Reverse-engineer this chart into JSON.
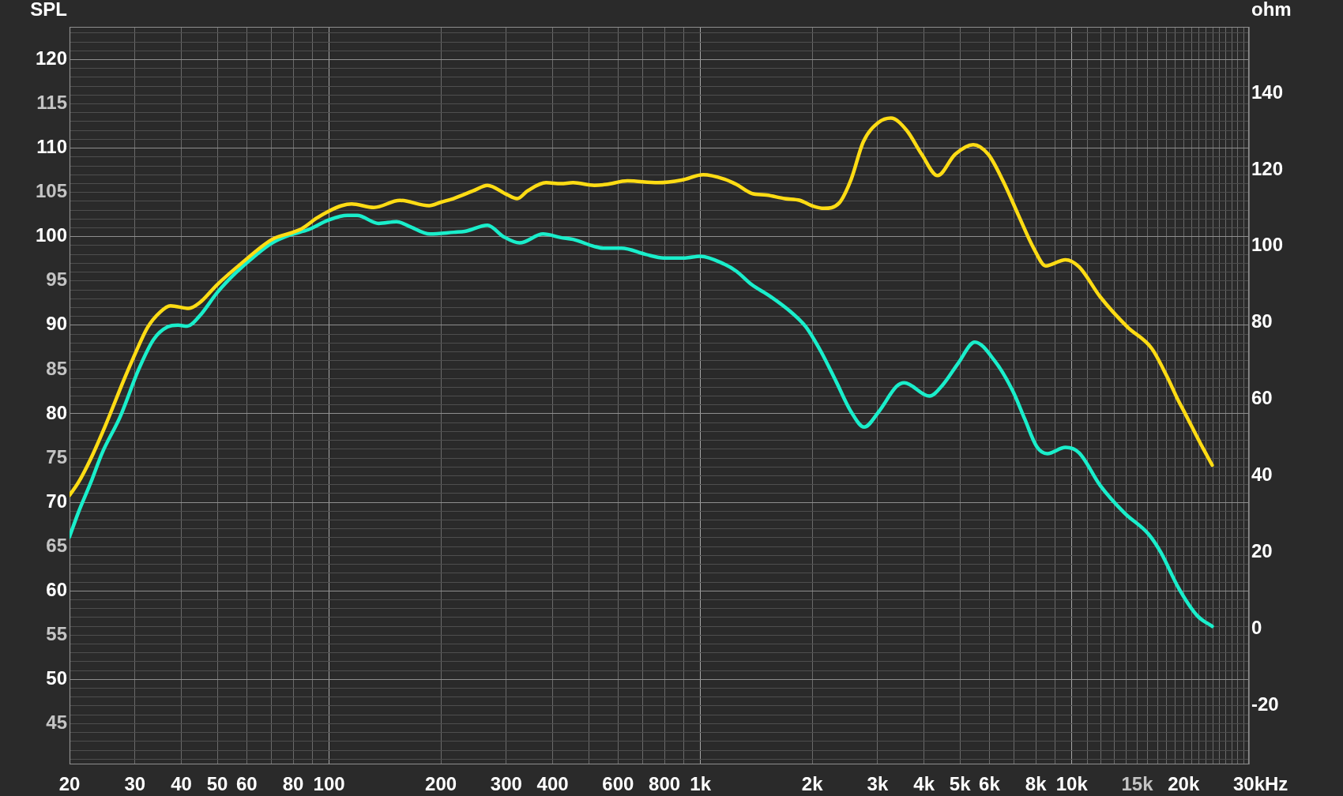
{
  "chart_data": {
    "type": "line",
    "ylabel": "SPL",
    "y2label": "ohm",
    "xlabel": "Hz",
    "log": "x",
    "grid": true,
    "line_style": "solid",
    "xlim": [
      20,
      30000
    ],
    "xticks": [
      20,
      30,
      40,
      50,
      60,
      {
        "value": 70,
        "label": null
      },
      80,
      {
        "value": 90,
        "label": null
      },
      100,
      200,
      300,
      400,
      {
        "value": 500,
        "label": null
      },
      600,
      {
        "value": 700,
        "label": null
      },
      800,
      {
        "value": 900,
        "label": null
      },
      {
        "value": 1000,
        "label": "1k"
      },
      {
        "value": 2000,
        "label": "2k"
      },
      {
        "value": 3000,
        "label": "3k"
      },
      {
        "value": 4000,
        "label": "4k"
      },
      {
        "value": 5000,
        "label": "5k"
      },
      {
        "value": 6000,
        "label": "6k"
      },
      {
        "value": 7000,
        "label": null
      },
      {
        "value": 8000,
        "label": "8k"
      },
      {
        "value": 9000,
        "label": null
      },
      {
        "value": 10000,
        "label": "10k"
      },
      {
        "value": 11000,
        "label": null
      },
      {
        "value": 12000,
        "label": null
      },
      {
        "value": 13000,
        "label": null
      },
      {
        "value": 14000,
        "label": null
      },
      {
        "value": 15000,
        "label": "15k"
      },
      {
        "value": 16000,
        "label": null
      },
      {
        "value": 17000,
        "label": null
      },
      {
        "value": 18000,
        "label": null
      },
      {
        "value": 19000,
        "label": null
      },
      {
        "value": 20000,
        "label": "20k"
      },
      {
        "value": 21000,
        "label": null
      },
      {
        "value": 22000,
        "label": null
      },
      {
        "value": 23000,
        "label": null
      },
      {
        "value": 24000,
        "label": null
      },
      {
        "value": 25000,
        "label": null
      },
      {
        "value": 26000,
        "label": null
      },
      {
        "value": 27000,
        "label": null
      },
      {
        "value": 28000,
        "label": null
      },
      {
        "value": 29000,
        "label": null
      },
      {
        "value": 30000,
        "label": "30k"
      }
    ],
    "ylim": [
      40.4,
      123.7
    ],
    "yticks": [
      {
        "value": 41,
        "label": null
      },
      {
        "value": 42,
        "label": null
      },
      {
        "value": 43,
        "label": null
      },
      {
        "value": 44,
        "label": null
      },
      45,
      {
        "value": 46,
        "label": null
      },
      {
        "value": 47,
        "label": null
      },
      {
        "value": 48,
        "label": null
      },
      {
        "value": 49,
        "label": null
      },
      50,
      {
        "value": 51,
        "label": null
      },
      {
        "value": 52,
        "label": null
      },
      {
        "value": 53,
        "label": null
      },
      {
        "value": 54,
        "label": null
      },
      55,
      {
        "value": 56,
        "label": null
      },
      {
        "value": 57,
        "label": null
      },
      {
        "value": 58,
        "label": null
      },
      {
        "value": 59,
        "label": null
      },
      60,
      {
        "value": 61,
        "label": null
      },
      {
        "value": 62,
        "label": null
      },
      {
        "value": 63,
        "label": null
      },
      {
        "value": 64,
        "label": null
      },
      65,
      {
        "value": 66,
        "label": null
      },
      {
        "value": 67,
        "label": null
      },
      {
        "value": 68,
        "label": null
      },
      {
        "value": 69,
        "label": null
      },
      70,
      {
        "value": 71,
        "label": null
      },
      {
        "value": 72,
        "label": null
      },
      {
        "value": 73,
        "label": null
      },
      {
        "value": 74,
        "label": null
      },
      75,
      {
        "value": 76,
        "label": null
      },
      {
        "value": 77,
        "label": null
      },
      {
        "value": 78,
        "label": null
      },
      {
        "value": 79,
        "label": null
      },
      80,
      {
        "value": 81,
        "label": null
      },
      {
        "value": 82,
        "label": null
      },
      {
        "value": 83,
        "label": null
      },
      {
        "value": 84,
        "label": null
      },
      85,
      {
        "value": 86,
        "label": null
      },
      {
        "value": 87,
        "label": null
      },
      {
        "value": 88,
        "label": null
      },
      {
        "value": 89,
        "label": null
      },
      90,
      {
        "value": 91,
        "label": null
      },
      {
        "value": 92,
        "label": null
      },
      {
        "value": 93,
        "label": null
      },
      {
        "value": 94,
        "label": null
      },
      95,
      {
        "value": 96,
        "label": null
      },
      {
        "value": 97,
        "label": null
      },
      {
        "value": 98,
        "label": null
      },
      {
        "value": 99,
        "label": null
      },
      100,
      {
        "value": 101,
        "label": null
      },
      {
        "value": 102,
        "label": null
      },
      {
        "value": 103,
        "label": null
      },
      {
        "value": 104,
        "label": null
      },
      105,
      {
        "value": 106,
        "label": null
      },
      {
        "value": 107,
        "label": null
      },
      {
        "value": 108,
        "label": null
      },
      {
        "value": 109,
        "label": null
      },
      110,
      {
        "value": 111,
        "label": null
      },
      {
        "value": 112,
        "label": null
      },
      {
        "value": 113,
        "label": null
      },
      {
        "value": 114,
        "label": null
      },
      115,
      {
        "value": 116,
        "label": null
      },
      {
        "value": 117,
        "label": null
      },
      {
        "value": 118,
        "label": null
      },
      {
        "value": 119,
        "label": null
      },
      120,
      {
        "value": 121,
        "label": null
      },
      {
        "value": 122,
        "label": null
      },
      {
        "value": 123,
        "label": null
      }
    ],
    "y2lim": [
      -35.3,
      157.3
    ],
    "y2ticks": [
      -20,
      0,
      20,
      40,
      60,
      80,
      100,
      120,
      140
    ],
    "series": [
      {
        "color": "#ffdc14",
        "x": [
          20,
          21.1,
          22.8,
          25,
          28,
          29.7,
          32.5,
          35.1,
          37.4,
          41.9,
          44.7,
          50,
          58.1,
          70.3,
          80,
          84.4,
          92.6,
          100,
          108,
          115,
          132,
          155,
          186,
          200,
          216,
          245,
          267,
          300,
          321,
          343,
          384,
          421,
          454,
          518,
          558,
          636,
          768,
          892,
          1017,
          1160,
          1250,
          1373,
          1508,
          1687,
          1853,
          1997,
          2151,
          2363,
          2547,
          2744,
          3017,
          3257,
          3594,
          3944,
          4352,
          4848,
          5427,
          5960,
          6545,
          7188,
          7895,
          8510,
          9614,
          10460,
          11930,
          14120,
          16400,
          18000,
          19300,
          20150,
          22170,
          23880
        ],
        "values": [
          70.8,
          72.2,
          74.9,
          78.7,
          83.8,
          86.3,
          89.8,
          91.5,
          92.2,
          91.9,
          92.5,
          94.6,
          97.0,
          99.7,
          100.5,
          100.9,
          102.1,
          102.9,
          103.5,
          103.7,
          103.3,
          104.1,
          103.5,
          103.9,
          104.3,
          105.2,
          105.8,
          104.8,
          104.3,
          105.2,
          106.1,
          106.0,
          106.1,
          105.8,
          105.9,
          106.3,
          106.1,
          106.4,
          107.0,
          106.5,
          105.9,
          104.9,
          104.7,
          104.3,
          104.1,
          103.5,
          103.2,
          103.8,
          106.5,
          110.7,
          112.9,
          113.4,
          112.0,
          109.3,
          106.9,
          109.3,
          110.4,
          109.3,
          106.2,
          102.4,
          98.7,
          96.7,
          97.4,
          96.6,
          93.2,
          89.8,
          87.4,
          84.3,
          81.6,
          80.1,
          76.7,
          74.2
        ]
      },
      {
        "color": "#1aeecb",
        "x": [
          20,
          21.1,
          22.8,
          24.5,
          27.4,
          30.7,
          33.7,
          36.7,
          39.2,
          41.5,
          44.7,
          50,
          56,
          63.8,
          70.3,
          78.6,
          88,
          100,
          112,
          119,
          136,
          152,
          164,
          187,
          217,
          232,
          267,
          295,
          326,
          377,
          421,
          454,
          518,
          548,
          613,
          712,
          797,
          909,
          998,
          1160,
          1250,
          1373,
          1537,
          1752,
          1924,
          2113,
          2322,
          2547,
          2760,
          3017,
          3375,
          3538,
          4138,
          4500,
          4941,
          5479,
          6193,
          6930,
          7470,
          8045,
          8590,
          9614,
          10460,
          11930,
          13860,
          16100,
          17340,
          19400,
          21760,
          23880
        ],
        "values": [
          66.1,
          68.8,
          72.2,
          75.6,
          79.7,
          85.0,
          88.4,
          89.8,
          90.0,
          89.9,
          91.0,
          93.7,
          95.9,
          98.0,
          99.3,
          100.2,
          100.8,
          101.9,
          102.4,
          102.4,
          101.5,
          101.7,
          101.2,
          100.3,
          100.5,
          100.6,
          101.3,
          100.0,
          99.3,
          100.3,
          99.9,
          99.7,
          98.9,
          98.7,
          98.7,
          98.0,
          97.6,
          97.6,
          97.8,
          96.9,
          96.1,
          94.6,
          93.3,
          91.5,
          89.8,
          87.0,
          83.6,
          80.2,
          78.5,
          80.2,
          83.1,
          83.5,
          82.0,
          83.3,
          85.7,
          88.1,
          86.0,
          82.6,
          79.4,
          76.3,
          75.5,
          76.2,
          75.6,
          71.9,
          68.8,
          66.4,
          64.4,
          60.3,
          57.2,
          56.0
        ]
      }
    ]
  }
}
